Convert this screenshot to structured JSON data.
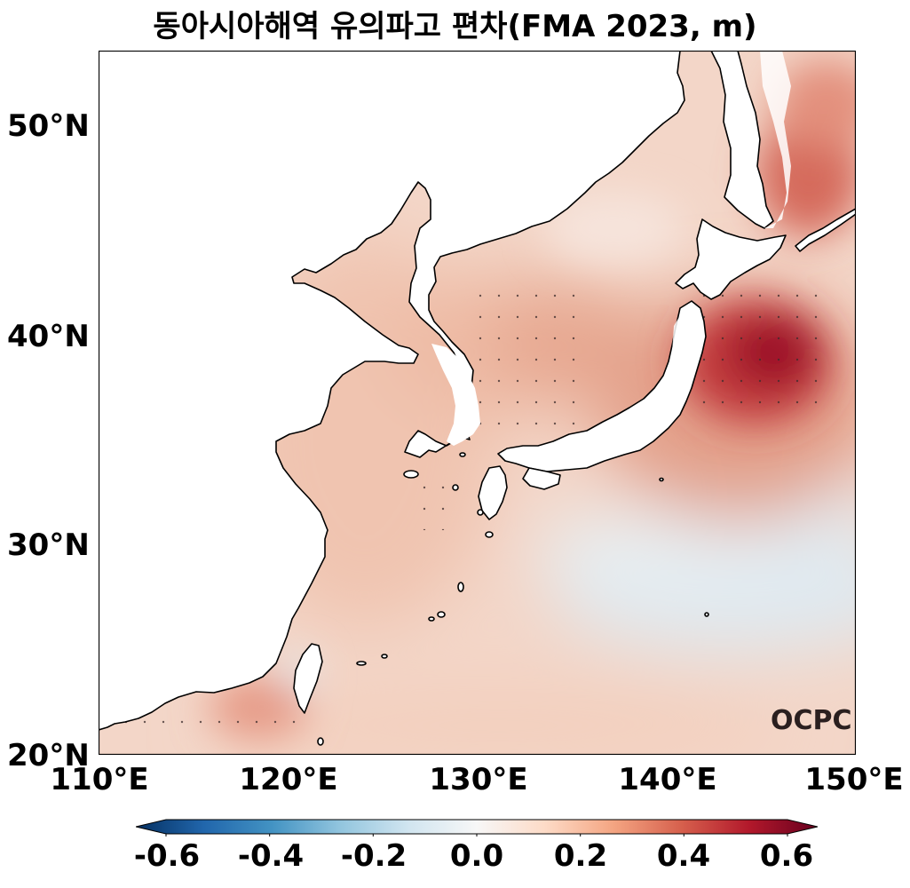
{
  "title": "동아시아해역 유의파고 편차(FMA 2023, m)",
  "map": {
    "region": "East Asian seas",
    "lon_range": [
      110,
      150
    ],
    "lat_range": [
      20,
      53.5
    ],
    "lat_ticks": [
      "50°N",
      "40°N",
      "30°N",
      "20°N"
    ],
    "lon_ticks": [
      "110°E",
      "120°E",
      "130°E",
      "140°E",
      "150°E"
    ],
    "features": {
      "max_anomaly_area": "east of northern Japan, around 145°E 38.5°N",
      "negative_anomaly_area": "subtropical Pacific south-east of Japan",
      "stippling": "dots mark statistically significant anomalies"
    }
  },
  "colorbar": {
    "colormap": "RdBu_r",
    "range": [
      -0.6,
      0.6
    ],
    "tick_labels": [
      "-0.6",
      "-0.4",
      "-0.2",
      "0.0",
      "0.2",
      "0.4",
      "0.6"
    ],
    "extend": "both"
  },
  "logo": "OCPC",
  "colors": {
    "land": "#ffffff",
    "coastline": "#000000",
    "strong_positive": "#9b1126",
    "weak_negative": "#deebf2"
  }
}
